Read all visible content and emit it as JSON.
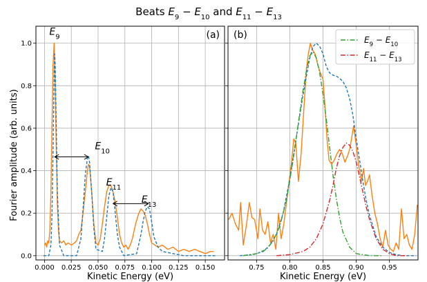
{
  "figure": {
    "title_parts": [
      {
        "t": "Beats "
      },
      {
        "t": "E",
        "i": true
      },
      {
        "t": "9",
        "sub": true
      },
      {
        "t": " − "
      },
      {
        "t": "E",
        "i": true
      },
      {
        "t": "10",
        "sub": true
      },
      {
        "t": " and "
      },
      {
        "t": "E",
        "i": true
      },
      {
        "t": "11",
        "sub": true
      },
      {
        "t": " − "
      },
      {
        "t": "E",
        "i": true
      },
      {
        "t": "13",
        "sub": true
      }
    ],
    "ylabel": "Fourier amplitude (arb. units)"
  },
  "colors": {
    "orange": "#ff7f0e",
    "blue": "#1f77b4",
    "green": "#2ca02c",
    "red": "#d62728",
    "grid": "#b0b0b0"
  },
  "chart_data": [
    {
      "type": "line",
      "panel_label": "(a)",
      "xlabel": "Kinetic Energy (eV)",
      "ylabel": "Fourier amplitude (arb. units)",
      "xlim": [
        -0.008,
        0.168
      ],
      "ylim": [
        -0.02,
        1.08
      ],
      "grid": true,
      "xticks": [
        0.0,
        0.025,
        0.05,
        0.075,
        0.1,
        0.125,
        0.15
      ],
      "xtick_labels": [
        "0.000",
        "0.025",
        "0.050",
        "0.075",
        "0.100",
        "0.125",
        "0.150"
      ],
      "yticks": [
        0.0,
        0.2,
        0.4,
        0.6,
        0.8,
        1.0
      ],
      "ytick_labels": [
        "0.0",
        "0.2",
        "0.4",
        "0.6",
        "0.8",
        "1.0"
      ],
      "series": [
        {
          "style": "solid",
          "color": "orange",
          "x": [
            0.0,
            0.001,
            0.002,
            0.003,
            0.004,
            0.005,
            0.006,
            0.007,
            0.008,
            0.009,
            0.01,
            0.011,
            0.012,
            0.013,
            0.014,
            0.016,
            0.018,
            0.02,
            0.022,
            0.025,
            0.028,
            0.03,
            0.032,
            0.034,
            0.036,
            0.038,
            0.04,
            0.041,
            0.042,
            0.044,
            0.046,
            0.048,
            0.05,
            0.052,
            0.054,
            0.056,
            0.058,
            0.06,
            0.062,
            0.064,
            0.066,
            0.068,
            0.07,
            0.072,
            0.074,
            0.076,
            0.078,
            0.08,
            0.082,
            0.085,
            0.088,
            0.09,
            0.092,
            0.094,
            0.096,
            0.098,
            0.1,
            0.103,
            0.106,
            0.11,
            0.115,
            0.12,
            0.125,
            0.13,
            0.135,
            0.14,
            0.145,
            0.15,
            0.155,
            0.158
          ],
          "y": [
            0.05,
            0.06,
            0.04,
            0.07,
            0.06,
            0.12,
            0.3,
            0.62,
            0.9,
            1.0,
            0.8,
            0.5,
            0.25,
            0.12,
            0.07,
            0.06,
            0.07,
            0.05,
            0.06,
            0.05,
            0.06,
            0.07,
            0.1,
            0.12,
            0.2,
            0.3,
            0.4,
            0.43,
            0.42,
            0.3,
            0.15,
            0.06,
            0.05,
            0.08,
            0.15,
            0.23,
            0.3,
            0.33,
            0.33,
            0.3,
            0.25,
            0.18,
            0.1,
            0.06,
            0.04,
            0.05,
            0.03,
            0.05,
            0.08,
            0.15,
            0.2,
            0.22,
            0.21,
            0.19,
            0.15,
            0.1,
            0.06,
            0.05,
            0.04,
            0.05,
            0.03,
            0.04,
            0.02,
            0.03,
            0.02,
            0.03,
            0.02,
            0.01,
            0.02,
            0.02
          ]
        },
        {
          "style": "dashed",
          "color": "blue",
          "x": [
            -0.001,
            0.004,
            0.006,
            0.007,
            0.008,
            0.009,
            0.0095,
            0.01,
            0.011,
            0.012,
            0.014,
            0.018,
            0.03,
            0.034,
            0.036,
            0.038,
            0.04,
            0.041,
            0.042,
            0.044,
            0.046,
            0.048,
            0.054,
            0.056,
            0.058,
            0.06,
            0.062,
            0.064,
            0.066,
            0.068,
            0.07,
            0.074,
            0.086,
            0.09,
            0.092,
            0.094,
            0.096,
            0.098,
            0.1,
            0.102,
            0.106,
            0.11,
            0.12,
            0.13,
            0.14,
            0.16
          ],
          "y": [
            0.0,
            0.0,
            0.05,
            0.2,
            0.5,
            0.85,
            0.95,
            0.9,
            0.6,
            0.3,
            0.05,
            0.0,
            0.0,
            0.08,
            0.22,
            0.38,
            0.46,
            0.47,
            0.44,
            0.3,
            0.13,
            0.03,
            0.02,
            0.08,
            0.18,
            0.28,
            0.32,
            0.3,
            0.2,
            0.1,
            0.04,
            0.0,
            0.01,
            0.1,
            0.16,
            0.21,
            0.23,
            0.22,
            0.16,
            0.09,
            0.04,
            0.02,
            0.01,
            0.0,
            0.0,
            0.0
          ]
        }
      ],
      "annotations": [
        {
          "base": "E",
          "sub": "9",
          "x": 0.0045,
          "y": 1.04
        },
        {
          "base": "E",
          "sub": "10",
          "x": 0.047,
          "y": 0.5
        },
        {
          "base": "E",
          "sub": "11",
          "x": 0.0575,
          "y": 0.33
        },
        {
          "base": "E",
          "sub": "13",
          "x": 0.0905,
          "y": 0.25
        }
      ],
      "arrows": [
        {
          "x1": 0.0095,
          "x2": 0.041,
          "y": 0.465
        },
        {
          "x1": 0.064,
          "x2": 0.097,
          "y": 0.245
        }
      ]
    },
    {
      "type": "line",
      "panel_label": "(b)",
      "xlabel": "Kinetic Energy (eV)",
      "xlim": [
        0.707,
        0.993
      ],
      "ylim": [
        -0.02,
        1.08
      ],
      "grid": true,
      "xticks": [
        0.75,
        0.8,
        0.85,
        0.9,
        0.95
      ],
      "xtick_labels": [
        "0.75",
        "0.80",
        "0.85",
        "0.90",
        "0.95"
      ],
      "yticks": [
        0.0,
        0.2,
        0.4,
        0.6,
        0.8,
        1.0
      ],
      "legend_position": "top-right",
      "series": [
        {
          "style": "solid",
          "color": "orange",
          "x": [
            0.708,
            0.713,
            0.718,
            0.723,
            0.726,
            0.73,
            0.735,
            0.739,
            0.743,
            0.747,
            0.752,
            0.755,
            0.759,
            0.763,
            0.767,
            0.771,
            0.775,
            0.779,
            0.783,
            0.787,
            0.791,
            0.795,
            0.799,
            0.803,
            0.806,
            0.809,
            0.813,
            0.817,
            0.821,
            0.825,
            0.828,
            0.831,
            0.834,
            0.838,
            0.842,
            0.846,
            0.85,
            0.853,
            0.856,
            0.859,
            0.863,
            0.867,
            0.871,
            0.875,
            0.879,
            0.883,
            0.887,
            0.89,
            0.893,
            0.896,
            0.9,
            0.904,
            0.908,
            0.911,
            0.914,
            0.917,
            0.92,
            0.924,
            0.928,
            0.932,
            0.936,
            0.94,
            0.944,
            0.948,
            0.952,
            0.956,
            0.96,
            0.964,
            0.968,
            0.972,
            0.976,
            0.98,
            0.984,
            0.988,
            0.992
          ],
          "y": [
            0.17,
            0.2,
            0.15,
            0.12,
            0.25,
            0.05,
            0.15,
            0.25,
            0.18,
            0.17,
            0.08,
            0.22,
            0.12,
            0.1,
            0.16,
            0.06,
            0.1,
            0.03,
            0.2,
            0.08,
            0.15,
            0.25,
            0.35,
            0.45,
            0.55,
            0.53,
            0.35,
            0.48,
            0.68,
            0.88,
            0.95,
            1.0,
            0.97,
            0.95,
            0.9,
            0.86,
            0.83,
            0.7,
            0.55,
            0.45,
            0.43,
            0.45,
            0.48,
            0.5,
            0.48,
            0.44,
            0.47,
            0.5,
            0.55,
            0.61,
            0.52,
            0.42,
            0.35,
            0.41,
            0.33,
            0.35,
            0.38,
            0.28,
            0.2,
            0.15,
            0.08,
            0.04,
            0.12,
            0.05,
            0.03,
            0.02,
            0.06,
            0.03,
            0.22,
            0.08,
            0.1,
            0.05,
            0.03,
            0.1,
            0.24
          ]
        },
        {
          "style": "dashed",
          "color": "blue",
          "x": [
            0.725,
            0.745,
            0.76,
            0.77,
            0.78,
            0.79,
            0.8,
            0.81,
            0.82,
            0.83,
            0.835,
            0.84,
            0.845,
            0.85,
            0.855,
            0.86,
            0.865,
            0.87,
            0.875,
            0.88,
            0.885,
            0.89,
            0.895,
            0.9,
            0.905,
            0.91,
            0.915,
            0.92,
            0.93,
            0.94,
            0.95,
            0.96,
            0.97,
            0.98,
            0.99
          ],
          "y": [
            0.0,
            0.005,
            0.02,
            0.05,
            0.1,
            0.2,
            0.36,
            0.56,
            0.76,
            0.93,
            0.985,
            1.0,
            0.985,
            0.95,
            0.89,
            0.86,
            0.85,
            0.845,
            0.835,
            0.82,
            0.79,
            0.74,
            0.66,
            0.55,
            0.45,
            0.35,
            0.26,
            0.19,
            0.09,
            0.04,
            0.015,
            0.005,
            0.0,
            0.0,
            0.0
          ]
        },
        {
          "style": "dashdot",
          "color": "green",
          "name_parts": [
            {
              "t": "E",
              "i": true
            },
            {
              "t": "9",
              "sub": true
            },
            {
              "t": " − "
            },
            {
              "t": "E",
              "i": true
            },
            {
              "t": "10",
              "sub": true
            }
          ],
          "x": [
            0.73,
            0.75,
            0.765,
            0.775,
            0.785,
            0.795,
            0.805,
            0.815,
            0.82,
            0.825,
            0.83,
            0.835,
            0.84,
            0.845,
            0.85,
            0.855,
            0.86,
            0.865,
            0.87,
            0.875,
            0.88,
            0.89,
            0.9,
            0.91,
            0.92,
            0.94
          ],
          "y": [
            0.0,
            0.01,
            0.03,
            0.07,
            0.14,
            0.26,
            0.45,
            0.67,
            0.78,
            0.87,
            0.94,
            0.96,
            0.93,
            0.86,
            0.76,
            0.64,
            0.51,
            0.38,
            0.27,
            0.18,
            0.11,
            0.04,
            0.01,
            0.005,
            0.0,
            0.0
          ]
        },
        {
          "style": "dashdot",
          "color": "red",
          "name_parts": [
            {
              "t": "E",
              "i": true
            },
            {
              "t": "11",
              "sub": true
            },
            {
              "t": " − "
            },
            {
              "t": "E",
              "i": true
            },
            {
              "t": "13",
              "sub": true
            }
          ],
          "x": [
            0.78,
            0.8,
            0.82,
            0.83,
            0.84,
            0.85,
            0.86,
            0.865,
            0.87,
            0.875,
            0.88,
            0.885,
            0.89,
            0.895,
            0.9,
            0.905,
            0.91,
            0.915,
            0.92,
            0.93,
            0.94,
            0.95,
            0.96,
            0.98
          ],
          "y": [
            0.0,
            0.005,
            0.02,
            0.04,
            0.08,
            0.15,
            0.26,
            0.33,
            0.41,
            0.47,
            0.51,
            0.53,
            0.52,
            0.49,
            0.44,
            0.37,
            0.3,
            0.23,
            0.17,
            0.08,
            0.03,
            0.01,
            0.0,
            0.0
          ]
        }
      ]
    }
  ]
}
